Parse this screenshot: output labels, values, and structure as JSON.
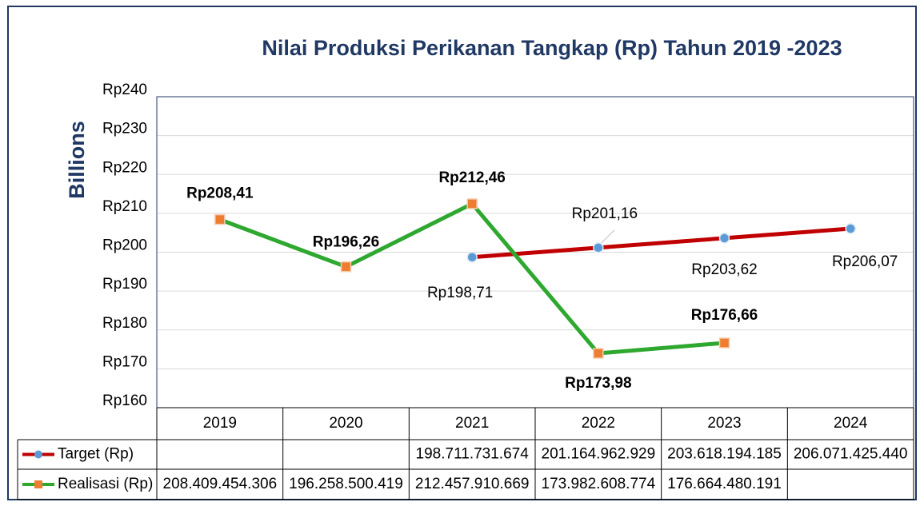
{
  "chart_data": {
    "type": "line",
    "title": "Nilai Produksi Perikanan Tangkap (Rp) Tahun 2019 -2023",
    "y_label": "Billions",
    "categories": [
      "2019",
      "2020",
      "2021",
      "2022",
      "2023",
      "2024"
    ],
    "ylim": [
      160,
      240
    ],
    "yticks": [
      {
        "value": 160,
        "label": "Rp160"
      },
      {
        "value": 170,
        "label": "Rp170"
      },
      {
        "value": 180,
        "label": "Rp180"
      },
      {
        "value": 190,
        "label": "Rp190"
      },
      {
        "value": 200,
        "label": "Rp200"
      },
      {
        "value": 210,
        "label": "Rp210"
      },
      {
        "value": 220,
        "label": "Rp220"
      },
      {
        "value": 230,
        "label": "Rp230"
      },
      {
        "value": 240,
        "label": "Rp240"
      }
    ],
    "grid": true,
    "series": [
      {
        "name": "Target (Rp)",
        "color": "#c00000",
        "marker_color": "#5b9bd5",
        "marker": "circle",
        "values": [
          null,
          null,
          198.711731674,
          201.164962929,
          203.618194185,
          206.07142544
        ],
        "value_labels": [
          null,
          null,
          "Rp198,71",
          "Rp201,16",
          "Rp203,62",
          "Rp206,07"
        ],
        "table_labels": [
          null,
          null,
          "198.711.731.674",
          "201.164.962.929",
          "203.618.194.185",
          "206.071.425.440"
        ]
      },
      {
        "name": "Realisasi (Rp)",
        "color": "#2ea82e",
        "marker_color": "#ed7d31",
        "marker": "square",
        "values": [
          208.409454306,
          196.258500419,
          212.457910669,
          173.982608774,
          176.664480191,
          null
        ],
        "value_labels": [
          "Rp208,41",
          "Rp196,26",
          "Rp212,46",
          "Rp173,98",
          "Rp176,66",
          null
        ],
        "table_labels": [
          "208.409.454.306",
          "196.258.500.419",
          "212.457.910.669",
          "173.982.608.774",
          "176.664.480.191",
          null
        ]
      }
    ]
  }
}
